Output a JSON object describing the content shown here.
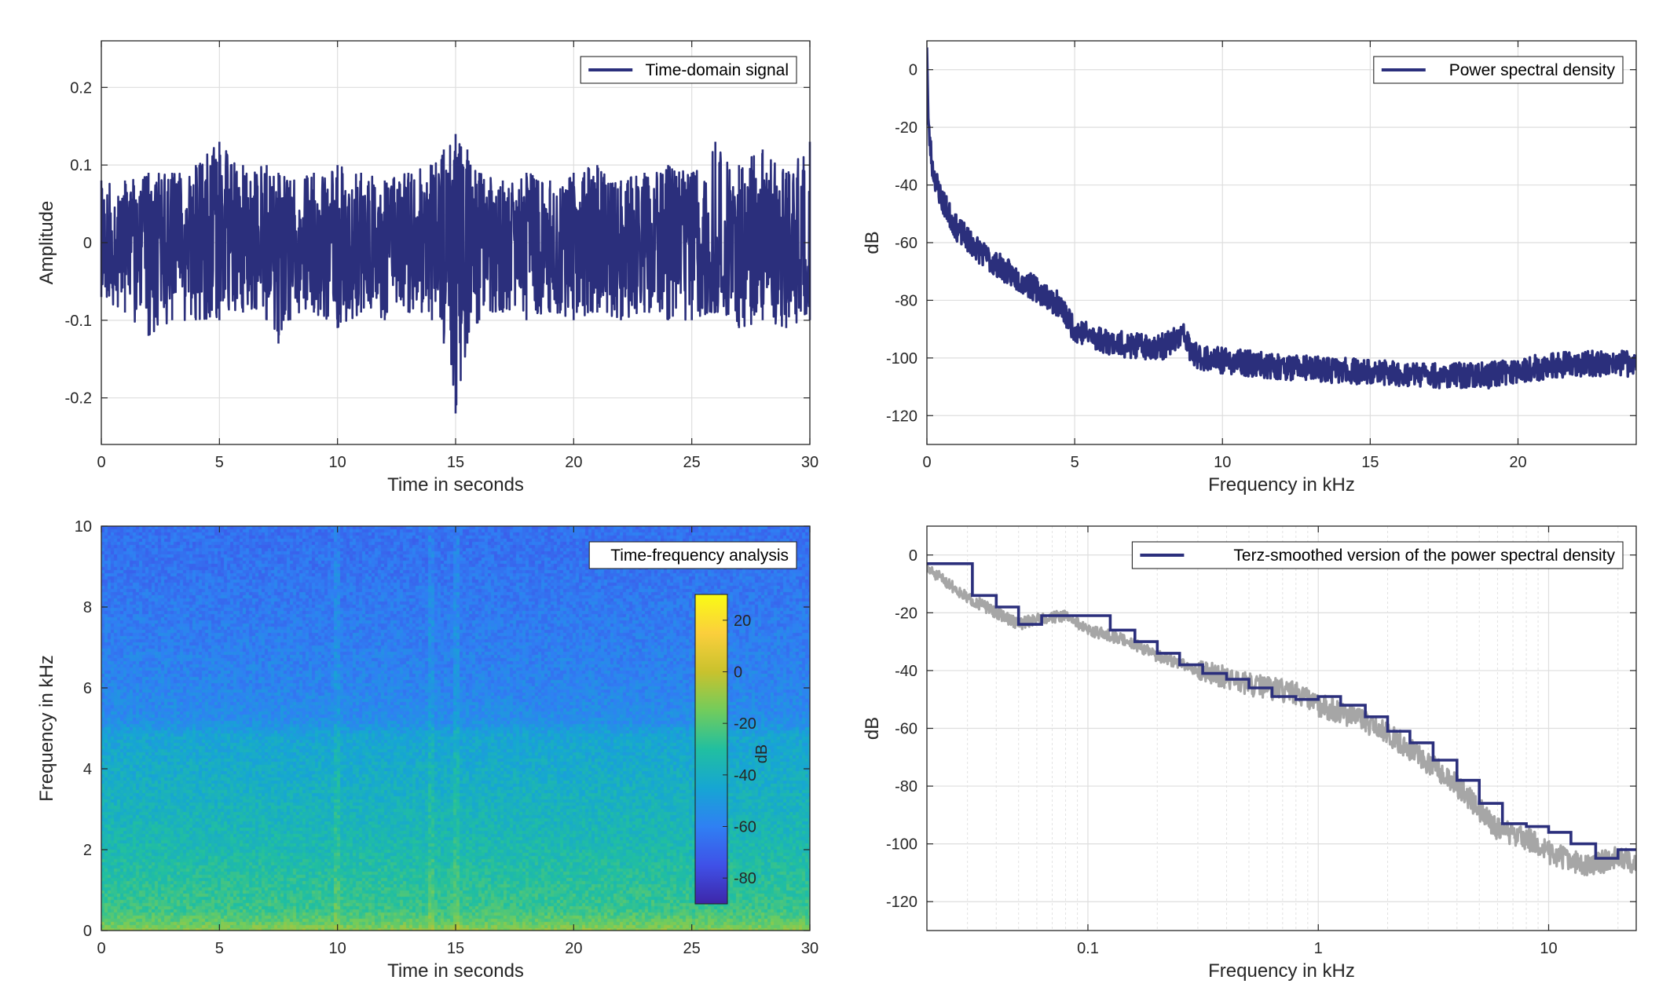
{
  "chart_data": [
    {
      "type": "line",
      "legend": "Time-domain signal",
      "legend_position": "top-right",
      "xlabel": "Time in seconds",
      "ylabel": "Amplitude",
      "xlim": [
        0,
        30
      ],
      "ylim": [
        -0.26,
        0.26
      ],
      "xticks": [
        0,
        5,
        10,
        15,
        20,
        25,
        30
      ],
      "yticks": [
        -0.2,
        -0.1,
        0,
        0.1,
        0.2
      ],
      "ytick_labels": [
        "-0.2",
        "-0.1",
        "0",
        "0.1",
        "0.2"
      ],
      "grid": true,
      "color": "#2b2f7c",
      "envelope": {
        "t": [
          0,
          1,
          2,
          3,
          4,
          5,
          6,
          7,
          7.5,
          8,
          9,
          10,
          11,
          12,
          13,
          14,
          14.5,
          15,
          15.5,
          16,
          17,
          18,
          19,
          20,
          21,
          22,
          23,
          24,
          25,
          26,
          27,
          28,
          29,
          30
        ],
        "max": [
          0.08,
          0.08,
          0.09,
          0.09,
          0.1,
          0.13,
          0.1,
          0.1,
          0.09,
          0.08,
          0.09,
          0.1,
          0.09,
          0.08,
          0.09,
          0.1,
          0.12,
          0.14,
          0.12,
          0.09,
          0.08,
          0.09,
          0.08,
          0.09,
          0.1,
          0.08,
          0.09,
          0.1,
          0.09,
          0.13,
          0.1,
          0.12,
          0.09,
          0.13
        ],
        "min": [
          -0.07,
          -0.09,
          -0.12,
          -0.1,
          -0.1,
          -0.1,
          -0.09,
          -0.1,
          -0.13,
          -0.1,
          -0.09,
          -0.11,
          -0.09,
          -0.1,
          -0.09,
          -0.1,
          -0.13,
          -0.22,
          -0.13,
          -0.1,
          -0.09,
          -0.1,
          -0.09,
          -0.1,
          -0.09,
          -0.1,
          -0.09,
          -0.1,
          -0.1,
          -0.09,
          -0.11,
          -0.1,
          -0.11,
          -0.1
        ]
      }
    },
    {
      "type": "line",
      "legend": "Power spectral density",
      "legend_position": "top-right",
      "xlabel": "Frequency in kHz",
      "ylabel": "dB",
      "xlim": [
        0,
        24
      ],
      "ylim": [
        -130,
        10
      ],
      "xticks": [
        0,
        5,
        10,
        15,
        20
      ],
      "yticks": [
        -120,
        -100,
        -80,
        -60,
        -40,
        -20,
        0
      ],
      "grid": true,
      "color": "#2b2f7c",
      "x": [
        0,
        0.05,
        0.2,
        0.5,
        1,
        1.5,
        2,
        3,
        4,
        4.5,
        5,
        6,
        7,
        8,
        8.7,
        9,
        10,
        12,
        15,
        17,
        19,
        20,
        21,
        22,
        23,
        24
      ],
      "y": [
        10,
        -20,
        -35,
        -45,
        -55,
        -60,
        -65,
        -72,
        -78,
        -82,
        -90,
        -94,
        -96,
        -96,
        -92,
        -99,
        -101,
        -103,
        -105,
        -106,
        -106,
        -104,
        -103,
        -102,
        -102,
        -102
      ]
    },
    {
      "type": "heatmap",
      "legend": "Time-frequency analysis",
      "legend_position": "top-right",
      "xlabel": "Time in seconds",
      "ylabel": "Frequency in kHz",
      "xlim": [
        0,
        30
      ],
      "ylim": [
        0,
        10
      ],
      "xticks": [
        0,
        5,
        10,
        15,
        20,
        25,
        30
      ],
      "yticks": [
        0,
        2,
        4,
        6,
        8,
        10
      ],
      "colorbar": {
        "label": "dB",
        "limits": [
          -90,
          30
        ],
        "ticks": [
          -80,
          -60,
          -40,
          -20,
          0,
          20
        ],
        "colors": [
          "#3e26a8",
          "#3f51e8",
          "#2f80f3",
          "#16a6d3",
          "#21bfa0",
          "#72cc5c",
          "#c9c22d",
          "#fbcf3c",
          "#f9fb15"
        ]
      },
      "freq_profile": {
        "f": [
          0,
          0.2,
          0.5,
          1,
          1.5,
          2,
          3,
          4,
          4.8,
          5.2,
          6,
          7,
          8,
          9,
          10
        ],
        "db": [
          -10,
          -18,
          -25,
          -28,
          -31,
          -34,
          -38,
          -42,
          -45,
          -55,
          -58,
          -60,
          -62,
          -64,
          -65
        ]
      },
      "vertical_lines_s": [
        10,
        14,
        15
      ]
    },
    {
      "type": "line",
      "legend": "Terz-smoothed version of the power spectral density",
      "legend_position": "top-right",
      "xlabel": "Frequency in kHz",
      "ylabel": "dB",
      "xscale": "log",
      "xlim": [
        0.02,
        24
      ],
      "ylim": [
        -130,
        10
      ],
      "xticks": [
        0.1,
        1,
        10
      ],
      "xtick_labels": [
        "0.1",
        "1",
        "10"
      ],
      "yticks": [
        -120,
        -100,
        -80,
        -60,
        -40,
        -20,
        0
      ],
      "grid": true,
      "series": [
        {
          "style": "raw",
          "color": "#a6a6a6",
          "x": [
            0.02,
            0.025,
            0.03,
            0.04,
            0.05,
            0.06,
            0.08,
            0.1,
            0.15,
            0.2,
            0.3,
            0.5,
            0.8,
            1,
            2,
            3,
            4,
            5,
            6,
            8,
            10,
            15,
            20,
            24
          ],
          "y": [
            -5,
            -10,
            -15,
            -20,
            -24,
            -22,
            -21,
            -26,
            -30,
            -35,
            -40,
            -45,
            -48,
            -52,
            -62,
            -72,
            -80,
            -88,
            -95,
            -98,
            -103,
            -108,
            -104,
            -108
          ]
        },
        {
          "style": "smoothed",
          "color": "#2b2f7c",
          "x": [
            0.02,
            0.025,
            0.0315,
            0.04,
            0.05,
            0.063,
            0.08,
            0.1,
            0.125,
            0.16,
            0.2,
            0.25,
            0.315,
            0.4,
            0.5,
            0.63,
            0.8,
            1,
            1.25,
            1.6,
            2,
            2.5,
            3.15,
            4,
            5,
            6.3,
            8,
            10,
            12.5,
            16,
            20,
            24
          ],
          "y": [
            -3,
            -3,
            -14,
            -18,
            -24,
            -21,
            -21,
            -21,
            -26,
            -30,
            -34,
            -38,
            -41,
            -43,
            -46,
            -49,
            -50,
            -49,
            -52,
            -56,
            -61,
            -65,
            -71,
            -78,
            -86,
            -93,
            -94,
            -96,
            -100,
            -105,
            -102,
            -102
          ]
        }
      ]
    }
  ]
}
